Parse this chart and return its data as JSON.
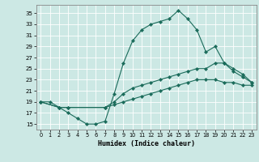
{
  "xlabel": "Humidex (Indice chaleur)",
  "ylabel": "",
  "bg_color": "#cce8e4",
  "line_color": "#1a6b5a",
  "xlim": [
    -0.5,
    23.5
  ],
  "ylim": [
    14,
    36.5
  ],
  "xticks": [
    0,
    1,
    2,
    3,
    4,
    5,
    6,
    7,
    8,
    9,
    10,
    11,
    12,
    13,
    14,
    15,
    16,
    17,
    18,
    19,
    20,
    21,
    22,
    23
  ],
  "yticks": [
    15,
    17,
    19,
    21,
    23,
    25,
    27,
    29,
    31,
    33,
    35
  ],
  "line1_x": [
    0,
    1,
    2,
    3,
    4,
    5,
    6,
    7,
    8,
    9,
    10,
    11,
    12,
    13,
    14,
    15,
    16,
    17,
    18,
    19,
    20,
    21,
    22,
    23
  ],
  "line1_y": [
    19,
    19,
    18,
    17,
    16,
    15,
    15,
    15.5,
    20.5,
    26,
    30,
    32,
    33,
    33.5,
    34,
    35.5,
    34,
    32,
    28,
    29,
    26,
    24.5,
    23.5,
    22.5
  ],
  "line2_x": [
    0,
    2,
    3,
    7,
    8,
    9,
    10,
    11,
    12,
    13,
    14,
    15,
    16,
    17,
    18,
    19,
    20,
    21,
    22,
    23
  ],
  "line2_y": [
    19,
    18,
    18,
    18,
    19,
    20.5,
    21.5,
    22,
    22.5,
    23,
    23.5,
    24,
    24.5,
    25,
    25,
    26,
    26,
    25,
    24,
    22.5
  ],
  "line3_x": [
    0,
    2,
    3,
    7,
    8,
    9,
    10,
    11,
    12,
    13,
    14,
    15,
    16,
    17,
    18,
    19,
    20,
    21,
    22,
    23
  ],
  "line3_y": [
    19,
    18,
    18,
    18,
    18.5,
    19,
    19.5,
    20,
    20.5,
    21,
    21.5,
    22,
    22.5,
    23,
    23,
    23,
    22.5,
    22.5,
    22,
    22
  ]
}
